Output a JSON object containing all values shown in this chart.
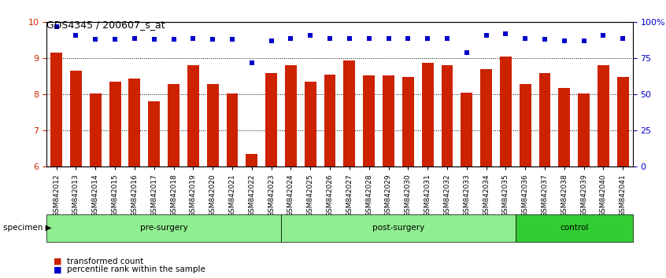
{
  "title": "GDS4345 / 200607_s_at",
  "samples": [
    "GSM842012",
    "GSM842013",
    "GSM842014",
    "GSM842015",
    "GSM842016",
    "GSM842017",
    "GSM842018",
    "GSM842019",
    "GSM842020",
    "GSM842021",
    "GSM842022",
    "GSM842023",
    "GSM842024",
    "GSM842025",
    "GSM842026",
    "GSM842027",
    "GSM842028",
    "GSM842029",
    "GSM842030",
    "GSM842031",
    "GSM842032",
    "GSM842033",
    "GSM842034",
    "GSM842035",
    "GSM842036",
    "GSM842037",
    "GSM842038",
    "GSM842039",
    "GSM842040",
    "GSM842041"
  ],
  "bar_values": [
    9.15,
    8.65,
    8.02,
    8.35,
    8.45,
    7.82,
    8.3,
    8.82,
    8.3,
    8.02,
    6.35,
    8.6,
    8.82,
    8.35,
    8.55,
    8.95,
    8.52,
    8.52,
    8.48,
    8.88,
    8.82,
    8.05,
    8.7,
    9.05,
    8.28,
    8.6,
    8.18,
    8.02,
    8.82,
    8.48
  ],
  "percentile_values": [
    97,
    91,
    88,
    88,
    89,
    88,
    88,
    89,
    88,
    88,
    72,
    87,
    89,
    91,
    89,
    89,
    89,
    89,
    89,
    89,
    89,
    79,
    91,
    92,
    89,
    88,
    87,
    87,
    91,
    89
  ],
  "groups": [
    {
      "name": "pre-surgery",
      "start": 0,
      "end": 12,
      "color": "#90EE90"
    },
    {
      "name": "post-surgery",
      "start": 12,
      "end": 24,
      "color": "#90EE90"
    },
    {
      "name": "control",
      "start": 24,
      "end": 30,
      "color": "#32CD32"
    }
  ],
  "bar_color": "#CC2200",
  "dot_color": "#0000CC",
  "ylim_left": [
    6,
    10
  ],
  "ylim_right": [
    0,
    100
  ],
  "yticks_left": [
    6,
    7,
    8,
    9,
    10
  ],
  "yticks_right": [
    0,
    25,
    50,
    75,
    100
  ],
  "ytick_labels_right": [
    "0",
    "25",
    "50",
    "75",
    "100%"
  ],
  "grid_values": [
    7,
    8,
    9
  ],
  "legend_items": [
    "transformed count",
    "percentile rank within the sample"
  ],
  "specimen_label": "specimen"
}
